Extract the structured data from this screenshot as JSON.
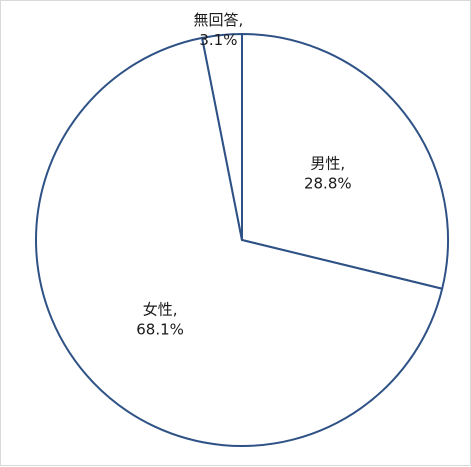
{
  "chart_data": {
    "type": "pie",
    "slices": [
      {
        "label": "男性",
        "value": 28.8,
        "value_text": "28.8%"
      },
      {
        "label": "女性",
        "value": 68.1,
        "value_text": "68.1%"
      },
      {
        "label": "無回答",
        "value": 3.1,
        "value_text": "3.1%"
      }
    ],
    "start_angle_deg": 0,
    "direction": "clockwise",
    "legend": "none",
    "colors": {
      "fill": "#ffffff",
      "stroke": "#2f5286",
      "text": "#1a1a1a",
      "frame": "#d9d9d9"
    }
  }
}
